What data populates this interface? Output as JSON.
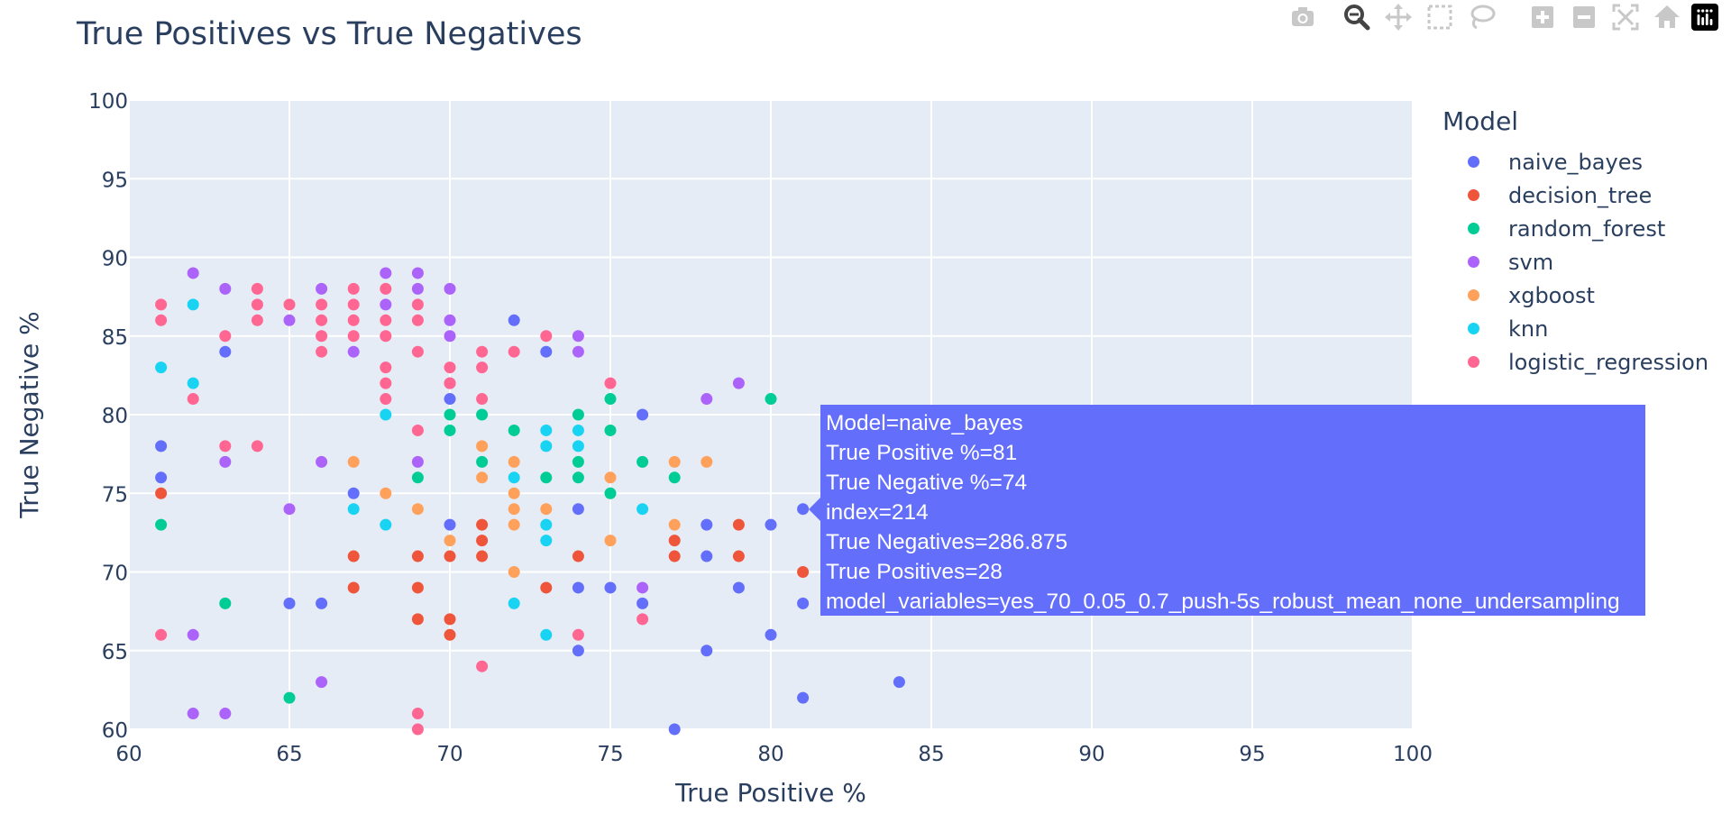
{
  "modebar": {
    "icons": [
      "camera-icon",
      "zoom-icon",
      "pan-icon",
      "box-select-icon",
      "lasso-select-icon",
      "zoom-in-icon",
      "zoom-out-icon",
      "autoscale-icon",
      "reset-axes-icon",
      "plotly-logo-icon"
    ]
  },
  "chart_data": {
    "type": "scatter",
    "title": "True Positives vs True Negatives",
    "xlabel": "True Positive %",
    "ylabel": "True Negative %",
    "xlim": [
      60,
      100
    ],
    "ylim": [
      60,
      100
    ],
    "xticks": [
      60,
      65,
      70,
      75,
      80,
      85,
      90,
      95,
      100
    ],
    "yticks": [
      60,
      65,
      70,
      75,
      80,
      85,
      90,
      95,
      100
    ],
    "grid": true,
    "legend_title": "Model",
    "legend_position": "right",
    "series": [
      {
        "name": "naive_bayes",
        "color": "#636efa",
        "points": [
          [
            61,
            78
          ],
          [
            61,
            76
          ],
          [
            63,
            84
          ],
          [
            65,
            68
          ],
          [
            66,
            68
          ],
          [
            67,
            75
          ],
          [
            70,
            81
          ],
          [
            70,
            73
          ],
          [
            72,
            86
          ],
          [
            73,
            84
          ],
          [
            74,
            74
          ],
          [
            74,
            69
          ],
          [
            74,
            65
          ],
          [
            75,
            69
          ],
          [
            76,
            80
          ],
          [
            76,
            68
          ],
          [
            77,
            60
          ],
          [
            78,
            73
          ],
          [
            78,
            71
          ],
          [
            78,
            65
          ],
          [
            79,
            69
          ],
          [
            80,
            73
          ],
          [
            80,
            66
          ],
          [
            81,
            74
          ],
          [
            81,
            68
          ],
          [
            81,
            62
          ],
          [
            84,
            63
          ]
        ]
      },
      {
        "name": "decision_tree",
        "color": "#ef553b",
        "points": [
          [
            61,
            75
          ],
          [
            67,
            71
          ],
          [
            67,
            69
          ],
          [
            69,
            71
          ],
          [
            69,
            69
          ],
          [
            69,
            67
          ],
          [
            70,
            71
          ],
          [
            70,
            67
          ],
          [
            70,
            66
          ],
          [
            71,
            73
          ],
          [
            71,
            72
          ],
          [
            71,
            71
          ],
          [
            73,
            69
          ],
          [
            74,
            71
          ],
          [
            77,
            72
          ],
          [
            77,
            71
          ],
          [
            79,
            73
          ],
          [
            79,
            71
          ],
          [
            81,
            70
          ]
        ]
      },
      {
        "name": "random_forest",
        "color": "#00cc96",
        "points": [
          [
            61,
            73
          ],
          [
            63,
            68
          ],
          [
            65,
            62
          ],
          [
            69,
            76
          ],
          [
            70,
            80
          ],
          [
            70,
            79
          ],
          [
            71,
            80
          ],
          [
            71,
            77
          ],
          [
            72,
            79
          ],
          [
            73,
            76
          ],
          [
            74,
            80
          ],
          [
            74,
            77
          ],
          [
            74,
            76
          ],
          [
            75,
            81
          ],
          [
            75,
            79
          ],
          [
            75,
            75
          ],
          [
            76,
            77
          ],
          [
            77,
            76
          ],
          [
            80,
            81
          ]
        ]
      },
      {
        "name": "svm",
        "color": "#ab63fa",
        "points": [
          [
            62,
            89
          ],
          [
            62,
            66
          ],
          [
            62,
            61
          ],
          [
            63,
            88
          ],
          [
            63,
            77
          ],
          [
            63,
            61
          ],
          [
            65,
            86
          ],
          [
            65,
            74
          ],
          [
            66,
            88
          ],
          [
            66,
            77
          ],
          [
            66,
            63
          ],
          [
            67,
            84
          ],
          [
            68,
            89
          ],
          [
            68,
            87
          ],
          [
            69,
            89
          ],
          [
            69,
            88
          ],
          [
            69,
            77
          ],
          [
            70,
            88
          ],
          [
            70,
            86
          ],
          [
            70,
            85
          ],
          [
            70,
            82
          ],
          [
            74,
            85
          ],
          [
            74,
            84
          ],
          [
            76,
            69
          ],
          [
            78,
            81
          ],
          [
            79,
            82
          ]
        ]
      },
      {
        "name": "xgboost",
        "color": "#ffa15a",
        "points": [
          [
            67,
            77
          ],
          [
            68,
            75
          ],
          [
            69,
            74
          ],
          [
            70,
            72
          ],
          [
            71,
            78
          ],
          [
            71,
            76
          ],
          [
            72,
            77
          ],
          [
            72,
            75
          ],
          [
            72,
            74
          ],
          [
            72,
            73
          ],
          [
            72,
            70
          ],
          [
            73,
            74
          ],
          [
            75,
            76
          ],
          [
            75,
            72
          ],
          [
            77,
            77
          ],
          [
            77,
            73
          ],
          [
            78,
            77
          ]
        ]
      },
      {
        "name": "knn",
        "color": "#19d3f3",
        "points": [
          [
            61,
            83
          ],
          [
            62,
            87
          ],
          [
            62,
            82
          ],
          [
            67,
            74
          ],
          [
            68,
            80
          ],
          [
            68,
            73
          ],
          [
            72,
            76
          ],
          [
            72,
            68
          ],
          [
            73,
            79
          ],
          [
            73,
            78
          ],
          [
            73,
            73
          ],
          [
            73,
            72
          ],
          [
            73,
            66
          ],
          [
            74,
            79
          ],
          [
            74,
            78
          ],
          [
            76,
            74
          ]
        ]
      },
      {
        "name": "logistic_regression",
        "color": "#ff6692",
        "points": [
          [
            61,
            87
          ],
          [
            61,
            86
          ],
          [
            61,
            66
          ],
          [
            62,
            81
          ],
          [
            63,
            85
          ],
          [
            63,
            78
          ],
          [
            64,
            88
          ],
          [
            64,
            87
          ],
          [
            64,
            86
          ],
          [
            64,
            78
          ],
          [
            65,
            87
          ],
          [
            66,
            87
          ],
          [
            66,
            86
          ],
          [
            66,
            85
          ],
          [
            66,
            84
          ],
          [
            67,
            88
          ],
          [
            67,
            87
          ],
          [
            67,
            86
          ],
          [
            67,
            85
          ],
          [
            68,
            88
          ],
          [
            68,
            86
          ],
          [
            68,
            85
          ],
          [
            68,
            83
          ],
          [
            68,
            82
          ],
          [
            68,
            81
          ],
          [
            69,
            87
          ],
          [
            69,
            86
          ],
          [
            69,
            84
          ],
          [
            69,
            79
          ],
          [
            69,
            61
          ],
          [
            69,
            60
          ],
          [
            70,
            83
          ],
          [
            70,
            82
          ],
          [
            71,
            84
          ],
          [
            71,
            83
          ],
          [
            71,
            81
          ],
          [
            71,
            64
          ],
          [
            72,
            84
          ],
          [
            73,
            85
          ],
          [
            74,
            66
          ],
          [
            75,
            82
          ],
          [
            76,
            67
          ]
        ]
      }
    ]
  },
  "hover": {
    "lines": [
      "Model=naive_bayes",
      "True Positive %=81",
      "True Negative %=74",
      "index=214",
      "True Negatives=286.875",
      "True Positives=28",
      "model_variables=yes_70_0.05_0.7_push-5s_robust_mean_none_undersampling"
    ],
    "x": 81,
    "y": 74
  }
}
